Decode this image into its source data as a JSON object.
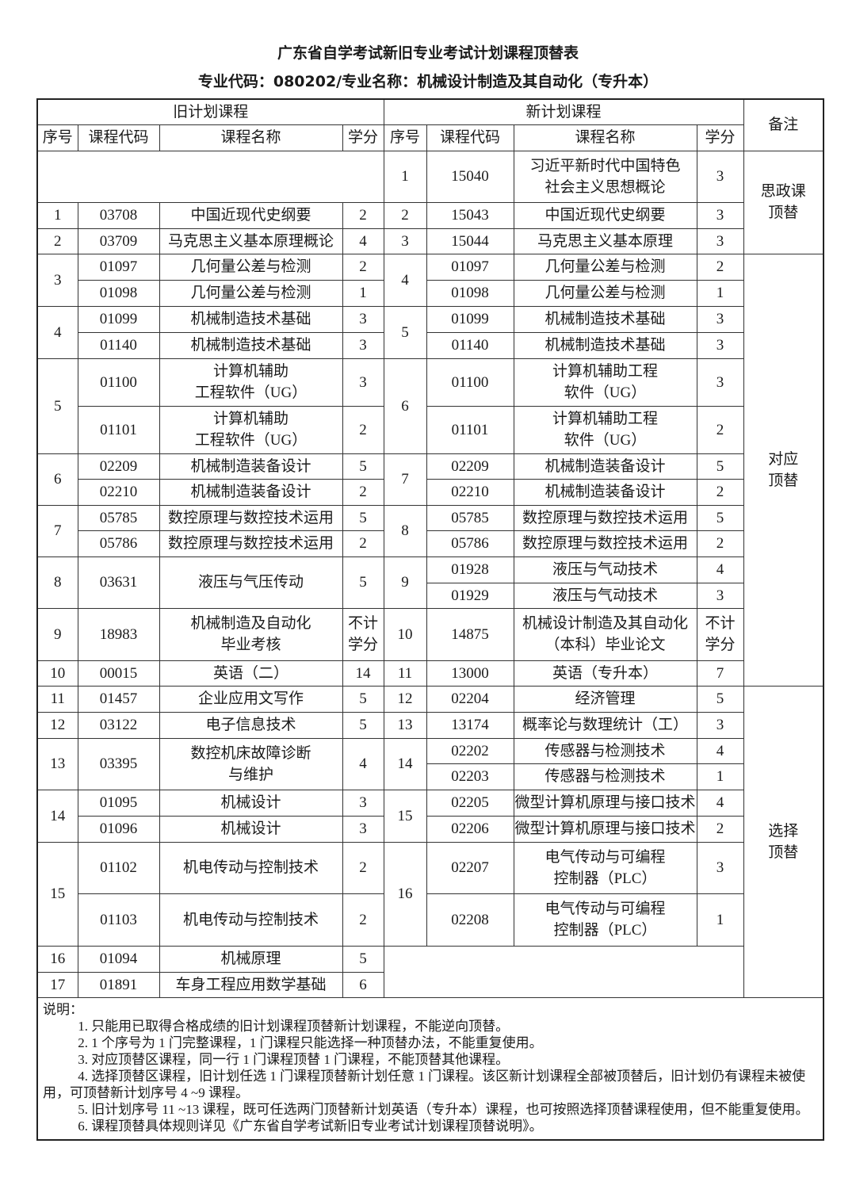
{
  "title": "广东省自学考试新旧专业考试计划课程顶替表",
  "subtitle": "专业代码：080202/专业名称：机械设计制造及其自动化（专升本）",
  "table": {
    "group_headers": [
      "旧计划课程",
      "新计划课程",
      "备注"
    ],
    "column_headers": [
      "序号",
      "课程代码",
      "课程名称",
      "学分",
      "序号",
      "课程代码",
      "课程名称",
      "学分"
    ],
    "rows": [
      [
        {
          "t": "",
          "cs": 4
        },
        {
          "t": "1"
        },
        {
          "t": "15040"
        },
        {
          "t": "习近平新时代中国特色\n社会主义思想概论"
        },
        {
          "t": "3"
        },
        {
          "t": "思政课\n顶替",
          "rs": 3
        }
      ],
      [
        {
          "t": "1"
        },
        {
          "t": "03708"
        },
        {
          "t": "中国近现代史纲要"
        },
        {
          "t": "2"
        },
        {
          "t": "2"
        },
        {
          "t": "15043"
        },
        {
          "t": "中国近现代史纲要"
        },
        {
          "t": "3"
        }
      ],
      [
        {
          "t": "2"
        },
        {
          "t": "03709"
        },
        {
          "t": "马克思主义基本原理概论"
        },
        {
          "t": "4"
        },
        {
          "t": "3"
        },
        {
          "t": "15044"
        },
        {
          "t": "马克思主义基本原理"
        },
        {
          "t": "3"
        }
      ],
      [
        {
          "t": "3",
          "rs": 2
        },
        {
          "t": "01097"
        },
        {
          "t": "几何量公差与检测"
        },
        {
          "t": "2"
        },
        {
          "t": "4",
          "rs": 2
        },
        {
          "t": "01097"
        },
        {
          "t": "几何量公差与检测"
        },
        {
          "t": "2"
        },
        {
          "t": "对应\n顶替",
          "rs": 14
        }
      ],
      [
        {
          "t": "01098"
        },
        {
          "t": "几何量公差与检测"
        },
        {
          "t": "1"
        },
        {
          "t": "01098"
        },
        {
          "t": "几何量公差与检测"
        },
        {
          "t": "1"
        }
      ],
      [
        {
          "t": "4",
          "rs": 2
        },
        {
          "t": "01099"
        },
        {
          "t": "机械制造技术基础"
        },
        {
          "t": "3"
        },
        {
          "t": "5",
          "rs": 2
        },
        {
          "t": "01099"
        },
        {
          "t": "机械制造技术基础"
        },
        {
          "t": "3"
        }
      ],
      [
        {
          "t": "01140"
        },
        {
          "t": "机械制造技术基础"
        },
        {
          "t": "3"
        },
        {
          "t": "01140"
        },
        {
          "t": "机械制造技术基础"
        },
        {
          "t": "3"
        }
      ],
      [
        {
          "t": "5",
          "rs": 2
        },
        {
          "t": "01100"
        },
        {
          "t": "计算机辅助\n工程软件（UG）"
        },
        {
          "t": "3"
        },
        {
          "t": "6",
          "rs": 2
        },
        {
          "t": "01100"
        },
        {
          "t": "计算机辅助工程\n软件（UG）"
        },
        {
          "t": "3"
        }
      ],
      [
        {
          "t": "01101"
        },
        {
          "t": "计算机辅助\n工程软件（UG）"
        },
        {
          "t": "2"
        },
        {
          "t": "01101"
        },
        {
          "t": "计算机辅助工程\n软件（UG）"
        },
        {
          "t": "2"
        }
      ],
      [
        {
          "t": "6",
          "rs": 2
        },
        {
          "t": "02209"
        },
        {
          "t": "机械制造装备设计"
        },
        {
          "t": "5"
        },
        {
          "t": "7",
          "rs": 2
        },
        {
          "t": "02209"
        },
        {
          "t": "机械制造装备设计"
        },
        {
          "t": "5"
        }
      ],
      [
        {
          "t": "02210"
        },
        {
          "t": "机械制造装备设计"
        },
        {
          "t": "2"
        },
        {
          "t": "02210"
        },
        {
          "t": "机械制造装备设计"
        },
        {
          "t": "2"
        }
      ],
      [
        {
          "t": "7",
          "rs": 2
        },
        {
          "t": "05785"
        },
        {
          "t": "数控原理与数控技术运用"
        },
        {
          "t": "5"
        },
        {
          "t": "8",
          "rs": 2
        },
        {
          "t": "05785"
        },
        {
          "t": "数控原理与数控技术运用"
        },
        {
          "t": "5"
        }
      ],
      [
        {
          "t": "05786"
        },
        {
          "t": "数控原理与数控技术运用"
        },
        {
          "t": "2"
        },
        {
          "t": "05786"
        },
        {
          "t": "数控原理与数控技术运用"
        },
        {
          "t": "2"
        }
      ],
      [
        {
          "t": "8",
          "rs": 2
        },
        {
          "t": "03631",
          "rs": 2
        },
        {
          "t": "液压与气压传动",
          "rs": 2
        },
        {
          "t": "5",
          "rs": 2
        },
        {
          "t": "9",
          "rs": 2
        },
        {
          "t": "01928"
        },
        {
          "t": "液压与气动技术"
        },
        {
          "t": "4"
        }
      ],
      [
        {
          "t": "01929"
        },
        {
          "t": "液压与气动技术"
        },
        {
          "t": "3"
        }
      ],
      [
        {
          "t": "9"
        },
        {
          "t": "18983"
        },
        {
          "t": "机械制造及自动化\n毕业考核"
        },
        {
          "t": "不计\n学分"
        },
        {
          "t": "10"
        },
        {
          "t": "14875"
        },
        {
          "t": "机械设计制造及其自动化\n（本科）毕业论文"
        },
        {
          "t": "不计\n学分"
        }
      ],
      [
        {
          "t": "10"
        },
        {
          "t": "00015"
        },
        {
          "t": "英语（二）"
        },
        {
          "t": "14"
        },
        {
          "t": "11"
        },
        {
          "t": "13000"
        },
        {
          "t": "英语（专升本）"
        },
        {
          "t": "7"
        }
      ],
      [
        {
          "t": "11"
        },
        {
          "t": "01457"
        },
        {
          "t": "企业应用文写作"
        },
        {
          "t": "5"
        },
        {
          "t": "12"
        },
        {
          "t": "02204"
        },
        {
          "t": "经济管理"
        },
        {
          "t": "5"
        },
        {
          "t": "选择\n顶替",
          "rs": 10
        }
      ],
      [
        {
          "t": "12"
        },
        {
          "t": "03122"
        },
        {
          "t": "电子信息技术"
        },
        {
          "t": "5"
        },
        {
          "t": "13"
        },
        {
          "t": "13174"
        },
        {
          "t": "概率论与数理统计（工）"
        },
        {
          "t": "3"
        }
      ],
      [
        {
          "t": "13",
          "rs": 2
        },
        {
          "t": "03395",
          "rs": 2
        },
        {
          "t": "数控机床故障诊断\n与维护",
          "rs": 2
        },
        {
          "t": "4",
          "rs": 2
        },
        {
          "t": "14",
          "rs": 2
        },
        {
          "t": "02202"
        },
        {
          "t": "传感器与检测技术"
        },
        {
          "t": "4"
        }
      ],
      [
        {
          "t": "02203"
        },
        {
          "t": "传感器与检测技术"
        },
        {
          "t": "1"
        }
      ],
      [
        {
          "t": "14",
          "rs": 2
        },
        {
          "t": "01095"
        },
        {
          "t": "机械设计"
        },
        {
          "t": "3"
        },
        {
          "t": "15",
          "rs": 2
        },
        {
          "t": "02205"
        },
        {
          "t": "微型计算机原理与接口技术"
        },
        {
          "t": "4"
        }
      ],
      [
        {
          "t": "01096"
        },
        {
          "t": "机械设计"
        },
        {
          "t": "3"
        },
        {
          "t": "02206"
        },
        {
          "t": "微型计算机原理与接口技术"
        },
        {
          "t": "2"
        }
      ],
      [
        {
          "t": "15",
          "rs": 2
        },
        {
          "t": "01102"
        },
        {
          "t": "机电传动与控制技术"
        },
        {
          "t": "2"
        },
        {
          "t": "16",
          "rs": 2
        },
        {
          "t": "02207"
        },
        {
          "t": "电气传动与可编程\n控制器（PLC）"
        },
        {
          "t": "3"
        }
      ],
      [
        {
          "t": "01103"
        },
        {
          "t": "机电传动与控制技术"
        },
        {
          "t": "2"
        },
        {
          "t": "02208"
        },
        {
          "t": "电气传动与可编程\n控制器（PLC）"
        },
        {
          "t": "1"
        }
      ],
      [
        {
          "t": "16"
        },
        {
          "t": "01094"
        },
        {
          "t": "机械原理"
        },
        {
          "t": "5"
        },
        {
          "t": "",
          "cs": 4,
          "rs": 2
        }
      ],
      [
        {
          "t": "17"
        },
        {
          "t": "01891"
        },
        {
          "t": "车身工程应用数学基础"
        },
        {
          "t": "6"
        }
      ]
    ]
  },
  "notes": {
    "heading": "说明：",
    "items": [
      "1. 只能用已取得合格成绩的旧计划课程顶替新计划课程，不能逆向顶替。",
      "2. 1 个序号为 1 门完整课程，1 门课程只能选择一种顶替办法，不能重复使用。",
      "3. 对应顶替区课程，同一行 1 门课程顶替 1 门课程，不能顶替其他课程。",
      "4. 选择顶替区课程，旧计划任选 1 门课程顶替新计划任意 1 门课程。该区新计划课程全部被顶替后，旧计划仍有课程未被使用，可顶替新计划序号 4 ~9 课程。",
      "5. 旧计划序号 11 ~13 课程，既可任选两门顶替新计划英语（专升本）课程，也可按照选择顶替课程使用，但不能重复使用。",
      "6. 课程顶替具体规则详见《广东省自学考试新旧专业考试计划课程顶替说明》。"
    ]
  }
}
